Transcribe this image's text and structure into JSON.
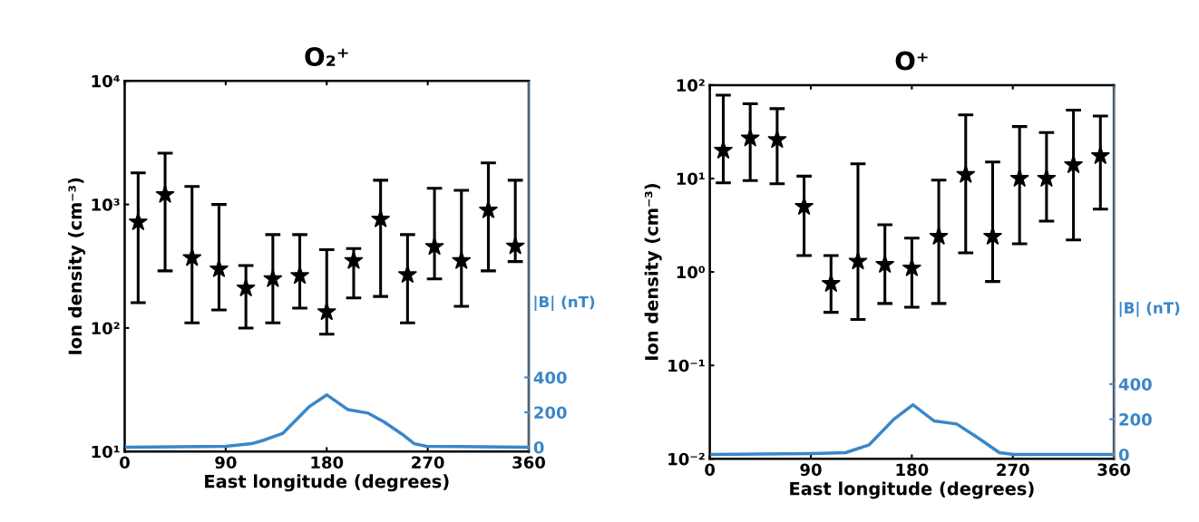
{
  "chart_data": [
    {
      "type": "scatter",
      "title": "O₂⁺",
      "xlabel": "East longitude (degrees)",
      "ylabel": "Ion density (cm⁻³)",
      "y2label": "|B| (nT)",
      "log": "y",
      "grid": false,
      "xlim": [
        0,
        360
      ],
      "xticks": [
        0,
        90,
        180,
        270,
        360
      ],
      "ylim": [
        10,
        10000
      ],
      "yticks": [
        {
          "value": 10,
          "label": "10¹"
        },
        {
          "value": 100,
          "label": "10²"
        },
        {
          "value": 1000,
          "label": "10³"
        },
        {
          "value": 10000,
          "label": "10⁴"
        }
      ],
      "y2lim": [
        -25,
        2100
      ],
      "y2ticks": [
        0,
        200,
        400
      ],
      "series": [
        {
          "color": "#000000",
          "marker": "star",
          "x": [
            12,
            36,
            60,
            84,
            108,
            132,
            156,
            180,
            204,
            228,
            252,
            276,
            300,
            324,
            348
          ],
          "values": [
            720,
            1200,
            370,
            300,
            210,
            250,
            265,
            135,
            350,
            760,
            270,
            455,
            350,
            900,
            460
          ],
          "errors": [
            [
              160,
              1800
            ],
            [
              290,
              2600
            ],
            [
              110,
              1400
            ],
            [
              140,
              1000
            ],
            [
              100,
              320
            ],
            [
              110,
              570
            ],
            [
              145,
              570
            ],
            [
              89,
              430
            ],
            [
              175,
              440
            ],
            [
              180,
              1570
            ],
            [
              110,
              570
            ],
            [
              250,
              1350
            ],
            [
              150,
              1300
            ],
            [
              290,
              2170
            ],
            [
              345,
              1570
            ]
          ]
        },
        {
          "type": "line",
          "axis": "y2",
          "color": "#3a86c8",
          "line_style": "solid",
          "marker": "none",
          "x": [
            0,
            90,
            113,
            124,
            141,
            164,
            180,
            199,
            217,
            231,
            247,
            258,
            269,
            360
          ],
          "values": [
            0,
            5,
            20,
            40,
            80,
            230,
            300,
            215,
            195,
            145,
            75,
            20,
            5,
            0
          ]
        }
      ]
    },
    {
      "type": "scatter",
      "title": "O⁺",
      "xlabel": "East longitude (degrees)",
      "ylabel": "Ion density (cm⁻³)",
      "y2label": "|B| (nT)",
      "log": "y",
      "grid": false,
      "xlim": [
        0,
        360
      ],
      "xticks": [
        0,
        90,
        180,
        270,
        360
      ],
      "ylim": [
        0.01,
        100
      ],
      "yticks": [
        {
          "value": 0.01,
          "label": "10⁻²"
        },
        {
          "value": 0.1,
          "label": "10⁻¹"
        },
        {
          "value": 1,
          "label": "10⁰"
        },
        {
          "value": 10,
          "label": "10¹"
        },
        {
          "value": 100,
          "label": "10²"
        }
      ],
      "y2lim": [
        -25,
        2100
      ],
      "y2ticks": [
        0,
        200,
        400
      ],
      "series": [
        {
          "color": "#000000",
          "marker": "star",
          "x": [
            12,
            36,
            60,
            84,
            108,
            132,
            156,
            180,
            204,
            228,
            252,
            276,
            300,
            324,
            348
          ],
          "values": [
            20,
            27,
            26,
            5,
            0.75,
            1.3,
            1.2,
            1.1,
            2.4,
            11,
            2.4,
            10,
            10,
            14,
            17.5
          ],
          "errors": [
            [
              9,
              78
            ],
            [
              9.5,
              63
            ],
            [
              8.8,
              56
            ],
            [
              1.5,
              10.6
            ],
            [
              0.37,
              1.5
            ],
            [
              0.31,
              14.4
            ],
            [
              0.46,
              3.2
            ],
            [
              0.42,
              2.3
            ],
            [
              0.46,
              9.6
            ],
            [
              1.6,
              48
            ],
            [
              0.79,
              15
            ],
            [
              2,
              36
            ],
            [
              3.5,
              31
            ],
            [
              2.2,
              54
            ],
            [
              4.7,
              46.7
            ]
          ]
        },
        {
          "type": "line",
          "axis": "y2",
          "color": "#3a86c8",
          "line_style": "solid",
          "marker": "none",
          "x": [
            0,
            90,
            121,
            142,
            164,
            181,
            200,
            220,
            240,
            258,
            271,
            360
          ],
          "values": [
            0,
            5,
            10,
            55,
            200,
            282,
            190,
            173,
            90,
            10,
            0,
            0
          ]
        }
      ]
    }
  ]
}
